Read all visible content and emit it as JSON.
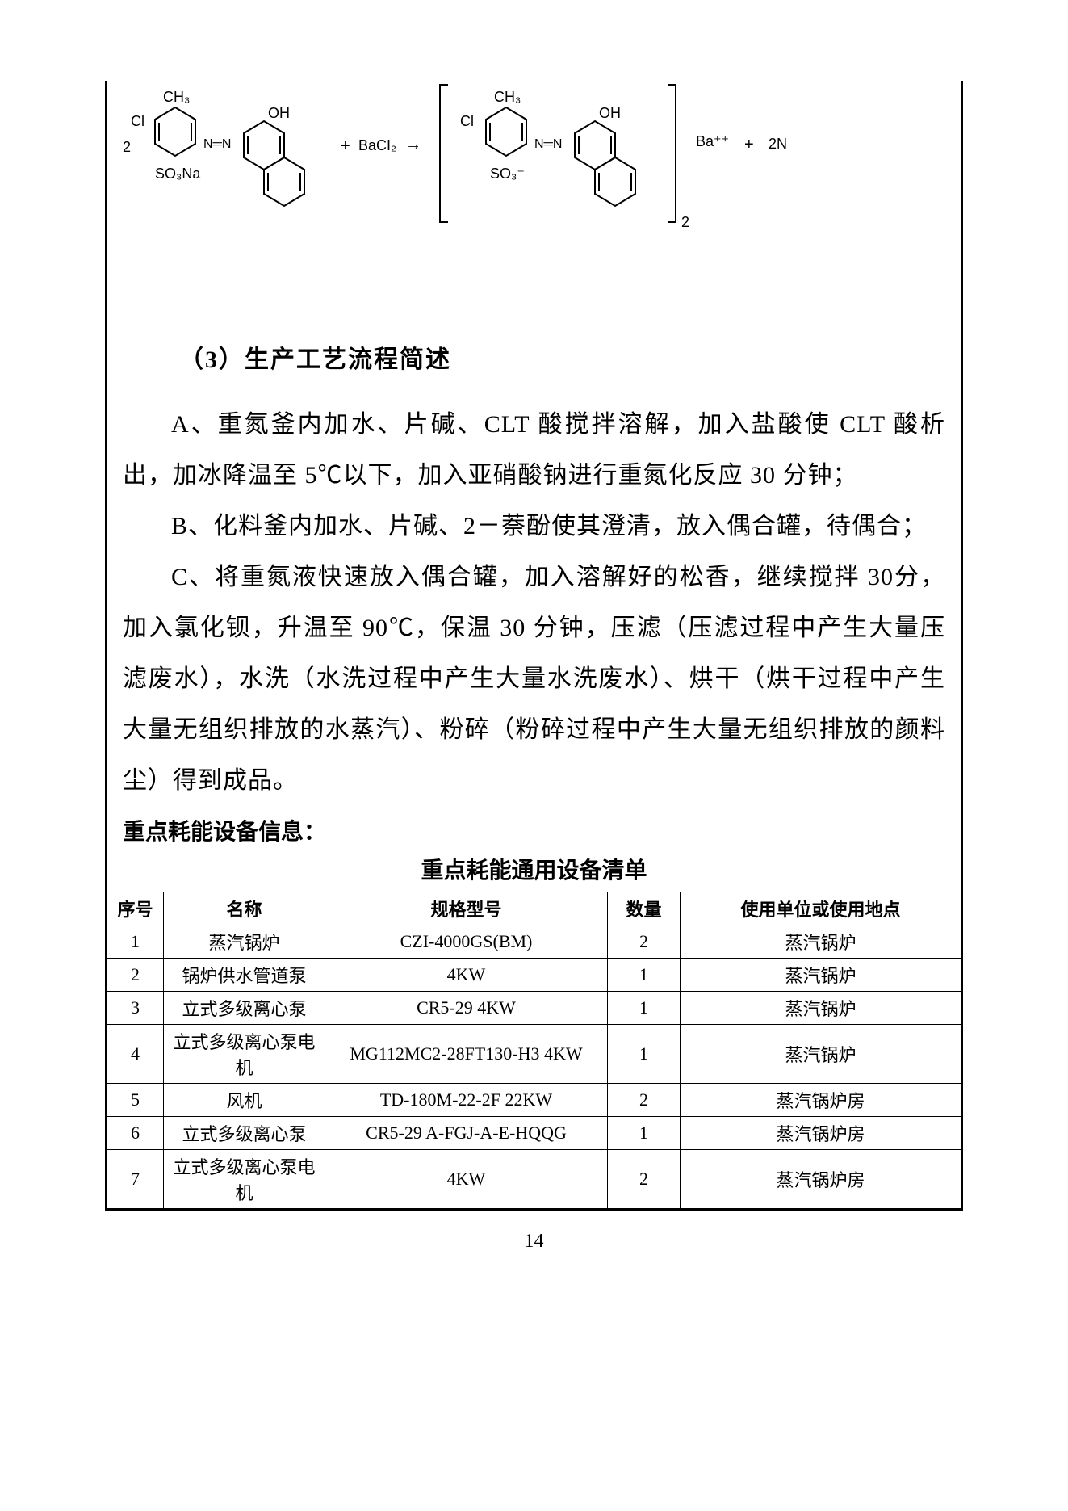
{
  "chem": {
    "coeff_left": "2",
    "labels_left": {
      "ch3": "CH₃",
      "cl": "Cl",
      "so3na": "SO₃Na",
      "nn": "N═N",
      "oh": "OH"
    },
    "plus1": "+",
    "reagent": "BaCI₂",
    "arrow": "→",
    "labels_right": {
      "ch3": "CH₃",
      "cl": "Cl",
      "so3": "SO₃⁻",
      "nn": "N═N",
      "oh": "OH"
    },
    "bracket_sub": "2",
    "product_ion": "Ba⁺⁺",
    "plus2": "+",
    "tail": "2N",
    "stroke": "#000000"
  },
  "section_heading": "（3）生产工艺流程简述",
  "paragraphs": {
    "a": "A、重氮釜内加水、片碱、CLT 酸搅拌溶解，加入盐酸使 CLT 酸析出，加冰降温至 5℃以下，加入亚硝酸钠进行重氮化反应 30 分钟；",
    "b": "B、化料釜内加水、片碱、2－萘酚使其澄清，放入偶合罐，待偶合；",
    "c": "C、将重氮液快速放入偶合罐，加入溶解好的松香，继续搅拌 30分，加入氯化钡，升温至 90℃，保温 30 分钟，压滤（压滤过程中产生大量压滤废水），水洗（水洗过程中产生大量水洗废水）、烘干（烘干过程中产生大量无组织排放的水蒸汽）、粉碎（粉碎过程中产生大量无组织排放的颜料尘）得到成品。"
  },
  "subheading": "重点耗能设备信息：",
  "table_title": "重点耗能通用设备清单",
  "table": {
    "columns": [
      "序号",
      "名称",
      "规格型号",
      "数量",
      "使用单位或使用地点"
    ],
    "rows": [
      [
        "1",
        "蒸汽锅炉",
        "CZI-4000GS(BM)",
        "2",
        "蒸汽锅炉"
      ],
      [
        "2",
        "锅炉供水管道泵",
        "4KW",
        "1",
        "蒸汽锅炉"
      ],
      [
        "3",
        "立式多级离心泵",
        "CR5-29 4KW",
        "1",
        "蒸汽锅炉"
      ],
      [
        "4",
        "立式多级离心泵电机",
        "MG112MC2-28FT130-H3 4KW",
        "1",
        "蒸汽锅炉"
      ],
      [
        "5",
        "风机",
        "TD-180M-22-2F 22KW",
        "2",
        "蒸汽锅炉房"
      ],
      [
        "6",
        "立式多级离心泵",
        "CR5-29 A-FGJ-A-E-HQQG",
        "1",
        "蒸汽锅炉房"
      ],
      [
        "7",
        "立式多级离心泵电机",
        "4KW",
        "2",
        "蒸汽锅炉房"
      ]
    ]
  },
  "page_number": "14",
  "style": {
    "body_fontsize": 30,
    "table_fontsize": 22,
    "heading_fontsize": 30,
    "border_color": "#000000",
    "bg": "#ffffff"
  }
}
